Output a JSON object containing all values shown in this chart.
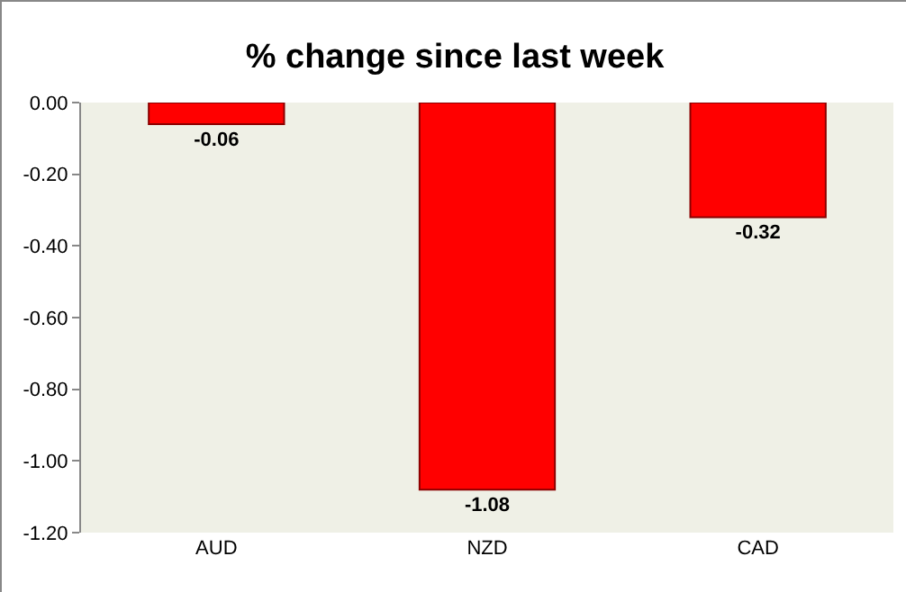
{
  "chart_data": {
    "type": "bar",
    "title": "% change since last week",
    "categories": [
      "AUD",
      "NZD",
      "CAD"
    ],
    "values": [
      -0.06,
      -1.08,
      -0.32
    ],
    "color": "#ff0000",
    "ylim": [
      -1.2,
      0
    ],
    "yticks": [
      {
        "value": -1.2,
        "label": "-1.20"
      },
      {
        "value": -1,
        "label": "-1.00"
      },
      {
        "value": -0.8,
        "label": "-0.80"
      },
      {
        "value": -0.6,
        "label": "-0.60"
      },
      {
        "value": -0.4,
        "label": "-0.40"
      },
      {
        "value": -0.2,
        "label": "-0.20"
      },
      {
        "value": 0,
        "label": "0.00"
      }
    ],
    "grid": false,
    "data_labels": true
  }
}
